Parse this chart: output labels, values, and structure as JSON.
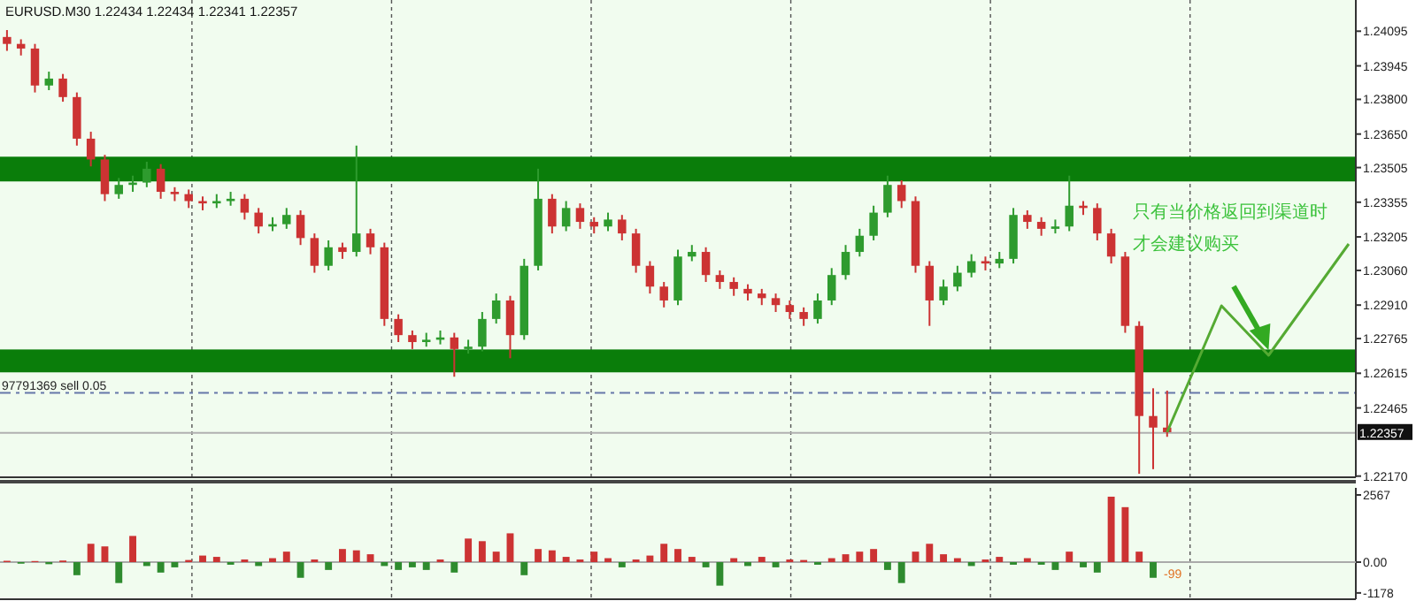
{
  "chart_data": [
    {
      "type": "candlestick",
      "title": "EURUSD.M30 1.22434 1.22434 1.22341 1.22357",
      "categories": [
        null,
        null,
        null,
        null,
        null,
        null,
        null,
        null,
        null,
        null,
        null,
        null,
        null,
        null,
        null,
        null,
        null,
        null,
        null,
        null,
        null,
        null,
        null,
        null,
        null,
        null,
        null,
        null,
        null,
        null,
        null,
        null,
        null,
        null,
        null,
        null,
        null,
        null,
        null,
        null,
        null,
        null,
        null,
        null,
        null,
        null,
        null,
        null,
        null,
        null,
        null,
        null,
        null,
        null,
        null,
        null,
        null,
        null,
        null,
        null,
        null,
        null,
        null,
        null,
        null,
        null,
        null,
        null,
        null,
        null,
        null,
        null,
        null,
        null,
        null,
        null,
        null,
        null,
        null,
        null,
        null,
        null,
        null,
        null,
        null,
        null,
        null,
        null,
        null,
        null,
        null,
        null,
        null,
        null,
        null,
        null,
        null
      ],
      "ohlc": [
        [
          1.2407,
          1.241,
          1.2401,
          1.2404
        ],
        [
          1.2404,
          1.2406,
          1.2399,
          1.2402
        ],
        [
          1.2402,
          1.2404,
          1.2383,
          1.2386
        ],
        [
          1.2386,
          1.2392,
          1.2384,
          1.2389
        ],
        [
          1.2389,
          1.2391,
          1.2379,
          1.2381
        ],
        [
          1.2381,
          1.2383,
          1.236,
          1.2363
        ],
        [
          1.2363,
          1.2366,
          1.2351,
          1.2354
        ],
        [
          1.2354,
          1.2356,
          1.2336,
          1.2339
        ],
        [
          1.2339,
          1.2346,
          1.2337,
          1.2343
        ],
        [
          1.2343,
          1.2347,
          1.234,
          1.2344
        ],
        [
          1.2344,
          1.2353,
          1.2342,
          1.235
        ],
        [
          1.235,
          1.2352,
          1.2337,
          1.234
        ],
        [
          1.234,
          1.2342,
          1.2336,
          1.2339
        ],
        [
          1.2339,
          1.2341,
          1.2333,
          1.2336
        ],
        [
          1.2336,
          1.2338,
          1.2332,
          1.2335
        ],
        [
          1.2335,
          1.2339,
          1.2333,
          1.2336
        ],
        [
          1.2336,
          1.234,
          1.2334,
          1.2337
        ],
        [
          1.2337,
          1.2339,
          1.2328,
          1.2331
        ],
        [
          1.2331,
          1.2333,
          1.2322,
          1.2325
        ],
        [
          1.2325,
          1.2329,
          1.2323,
          1.2326
        ],
        [
          1.2326,
          1.2333,
          1.2324,
          1.233
        ],
        [
          1.233,
          1.2332,
          1.2317,
          1.232
        ],
        [
          1.232,
          1.2322,
          1.2305,
          1.2308
        ],
        [
          1.2308,
          1.2319,
          1.2306,
          1.2316
        ],
        [
          1.2316,
          1.2318,
          1.2311,
          1.2314
        ],
        [
          1.2314,
          1.236,
          1.2312,
          1.2322
        ],
        [
          1.2322,
          1.2324,
          1.2313,
          1.2316
        ],
        [
          1.2316,
          1.2318,
          1.2282,
          1.2285
        ],
        [
          1.2285,
          1.2287,
          1.2275,
          1.2278
        ],
        [
          1.2278,
          1.228,
          1.2272,
          1.2275
        ],
        [
          1.2275,
          1.2279,
          1.2273,
          1.2276
        ],
        [
          1.2276,
          1.228,
          1.2274,
          1.2277
        ],
        [
          1.2277,
          1.2279,
          1.226,
          1.2272
        ],
        [
          1.2272,
          1.2276,
          1.227,
          1.2273
        ],
        [
          1.2273,
          1.2288,
          1.2271,
          1.2285
        ],
        [
          1.2285,
          1.2296,
          1.2283,
          1.2293
        ],
        [
          1.2293,
          1.2295,
          1.2268,
          1.2278
        ],
        [
          1.2278,
          1.2311,
          1.2276,
          1.2308
        ],
        [
          1.2308,
          1.235,
          1.2306,
          1.2337
        ],
        [
          1.2337,
          1.2339,
          1.2322,
          1.2325
        ],
        [
          1.2325,
          1.2336,
          1.2323,
          1.2333
        ],
        [
          1.2333,
          1.2335,
          1.2324,
          1.2327
        ],
        [
          1.2327,
          1.2329,
          1.2322,
          1.2325
        ],
        [
          1.2325,
          1.2331,
          1.2323,
          1.2328
        ],
        [
          1.2328,
          1.233,
          1.2319,
          1.2322
        ],
        [
          1.2322,
          1.2324,
          1.2305,
          1.2308
        ],
        [
          1.2308,
          1.231,
          1.2296,
          1.2299
        ],
        [
          1.2299,
          1.2301,
          1.229,
          1.2293
        ],
        [
          1.2293,
          1.2315,
          1.2291,
          1.2312
        ],
        [
          1.2312,
          1.2317,
          1.231,
          1.2314
        ],
        [
          1.2314,
          1.2316,
          1.2301,
          1.2304
        ],
        [
          1.2304,
          1.2306,
          1.2298,
          1.2301
        ],
        [
          1.2301,
          1.2303,
          1.2295,
          1.2298
        ],
        [
          1.2298,
          1.23,
          1.2293,
          1.2296
        ],
        [
          1.2296,
          1.2298,
          1.2291,
          1.2294
        ],
        [
          1.2294,
          1.2296,
          1.2288,
          1.2291
        ],
        [
          1.2291,
          1.2293,
          1.2285,
          1.2288
        ],
        [
          1.2288,
          1.229,
          1.2282,
          1.2285
        ],
        [
          1.2285,
          1.2296,
          1.2283,
          1.2293
        ],
        [
          1.2293,
          1.2307,
          1.2291,
          1.2304
        ],
        [
          1.2304,
          1.2317,
          1.2302,
          1.2314
        ],
        [
          1.2314,
          1.2324,
          1.2312,
          1.2321
        ],
        [
          1.2321,
          1.2334,
          1.2319,
          1.2331
        ],
        [
          1.2331,
          1.2347,
          1.2329,
          1.2343
        ],
        [
          1.2343,
          1.2345,
          1.2333,
          1.2336
        ],
        [
          1.2336,
          1.2338,
          1.2305,
          1.2308
        ],
        [
          1.2308,
          1.231,
          1.2282,
          1.2293
        ],
        [
          1.2293,
          1.2302,
          1.2291,
          1.2299
        ],
        [
          1.2299,
          1.2308,
          1.2297,
          1.2305
        ],
        [
          1.2305,
          1.2313,
          1.2303,
          1.231
        ],
        [
          1.231,
          1.2312,
          1.2306,
          1.2309
        ],
        [
          1.2309,
          1.2314,
          1.2307,
          1.2311
        ],
        [
          1.2311,
          1.2333,
          1.2309,
          1.233
        ],
        [
          1.233,
          1.2332,
          1.2324,
          1.2327
        ],
        [
          1.2327,
          1.2329,
          1.2321,
          1.2324
        ],
        [
          1.2324,
          1.2328,
          1.2322,
          1.2325
        ],
        [
          1.2325,
          1.2347,
          1.2323,
          1.2334
        ],
        [
          1.2334,
          1.2336,
          1.233,
          1.2333
        ],
        [
          1.2333,
          1.2335,
          1.2319,
          1.2322
        ],
        [
          1.2322,
          1.2324,
          1.2309,
          1.2312
        ],
        [
          1.2312,
          1.2314,
          1.2279,
          1.2282
        ],
        [
          1.2282,
          1.2284,
          1.2218,
          1.2243
        ],
        [
          1.2243,
          1.2255,
          1.222,
          1.2238
        ],
        [
          1.2238,
          1.2254,
          1.2234,
          1.2236
        ],
        null,
        null,
        null,
        null,
        null,
        null,
        null,
        null,
        null,
        null,
        null,
        null,
        null
      ],
      "colors": [
        "#cc3333",
        "#cc3333",
        "#cc3333",
        "#2e9b2e",
        "#cc3333",
        "#cc3333",
        "#cc3333",
        "#cc3333",
        "#2e9b2e",
        "#2e9b2e",
        "#2e9b2e",
        "#cc3333",
        "#cc3333",
        "#cc3333",
        "#cc3333",
        "#2e9b2e",
        "#2e9b2e",
        "#cc3333",
        "#cc3333",
        "#2e9b2e",
        "#2e9b2e",
        "#cc3333",
        "#cc3333",
        "#2e9b2e",
        "#cc3333",
        "#2e9b2e",
        "#cc3333",
        "#cc3333",
        "#cc3333",
        "#cc3333",
        "#2e9b2e",
        "#2e9b2e",
        "#cc3333",
        "#2e9b2e",
        "#2e9b2e",
        "#2e9b2e",
        "#cc3333",
        "#2e9b2e",
        "#2e9b2e",
        "#cc3333",
        "#2e9b2e",
        "#cc3333",
        "#cc3333",
        "#2e9b2e",
        "#cc3333",
        "#cc3333",
        "#cc3333",
        "#cc3333",
        "#2e9b2e",
        "#2e9b2e",
        "#cc3333",
        "#cc3333",
        "#cc3333",
        "#cc3333",
        "#cc3333",
        "#cc3333",
        "#cc3333",
        "#cc3333",
        "#2e9b2e",
        "#2e9b2e",
        "#2e9b2e",
        "#2e9b2e",
        "#2e9b2e",
        "#2e9b2e",
        "#cc3333",
        "#cc3333",
        "#cc3333",
        "#2e9b2e",
        "#2e9b2e",
        "#2e9b2e",
        "#cc3333",
        "#2e9b2e",
        "#2e9b2e",
        "#cc3333",
        "#cc3333",
        "#2e9b2e",
        "#2e9b2e",
        "#cc3333",
        "#cc3333",
        "#cc3333",
        "#cc3333",
        "#cc3333",
        "#cc3333",
        "#cc3333",
        null,
        null,
        null,
        null,
        null,
        null,
        null,
        null,
        null,
        null,
        null,
        null,
        null
      ],
      "ylim": [
        1.22165,
        1.2423
      ],
      "yticks": [
        1.24095,
        1.23945,
        {
          "value": 1.238,
          "label": "1.23800"
        },
        {
          "value": 1.2365,
          "label": "1.23650"
        },
        1.23505,
        1.23355,
        1.23205,
        {
          "value": 1.2306,
          "label": "1.23060"
        },
        {
          "value": 1.2291,
          "label": "1.22910"
        },
        1.22765,
        1.22615,
        1.22465,
        {
          "value": 1.2217,
          "label": "1.22170"
        }
      ],
      "bands": [
        {
          "axis": "y",
          "from": 1.23445,
          "to": 1.23552,
          "color": "#0a7d0a"
        },
        {
          "axis": "y",
          "from": 1.22619,
          "to": 1.22718,
          "color": "#0a7d0a"
        }
      ],
      "ref_lines": [
        {
          "axis": "y",
          "value": 1.2253,
          "label": "97791369 sell  0.05",
          "color": "#6677aa",
          "line_style": "dashed"
        },
        {
          "axis": "y",
          "value": 1.22357,
          "label": "1.22357",
          "color": "#b0b0b0",
          "line_style": "solid"
        }
      ],
      "annotations": [
        "只有当价格返回到渠道时",
        "才会建议购买"
      ],
      "grid": false
    },
    {
      "type": "bar",
      "categories": [
        null,
        null,
        null,
        null,
        null,
        null,
        null,
        null,
        null,
        null,
        null,
        null,
        null,
        null,
        null,
        null,
        null,
        null,
        null,
        null,
        null,
        null,
        null,
        null,
        null,
        null,
        null,
        null,
        null,
        null,
        null,
        null,
        null,
        null,
        null,
        null,
        null,
        null,
        null,
        null,
        null,
        null,
        null,
        null,
        null,
        null,
        null,
        null,
        null,
        null,
        null,
        null,
        null,
        null,
        null,
        null,
        null,
        null,
        null,
        null,
        null,
        null,
        null,
        null,
        null,
        null,
        null,
        null,
        null,
        null,
        null,
        null,
        null,
        null,
        null,
        null,
        null,
        null,
        null,
        null,
        null,
        null,
        null,
        null,
        null,
        null,
        null,
        null,
        null,
        null,
        null,
        null,
        null,
        null,
        null,
        null,
        null
      ],
      "values": [
        50,
        -60,
        40,
        -80,
        60,
        -500,
        700,
        600,
        -800,
        1000,
        -150,
        -400,
        -200,
        80,
        250,
        200,
        -100,
        100,
        -150,
        150,
        400,
        -600,
        100,
        -300,
        500,
        450,
        300,
        -150,
        -300,
        -200,
        -300,
        100,
        -400,
        900,
        800,
        400,
        1100,
        -500,
        500,
        450,
        200,
        100,
        400,
        150,
        -200,
        100,
        250,
        700,
        500,
        200,
        -200,
        -900,
        150,
        -150,
        200,
        -200,
        100,
        80,
        -100,
        150,
        300,
        400,
        500,
        -300,
        -800,
        400,
        700,
        300,
        150,
        -150,
        100,
        200,
        -100,
        150,
        -100,
        -300,
        400,
        -200,
        -400,
        2500,
        2100,
        400,
        -600,
        null,
        null,
        null,
        null,
        null,
        null,
        null,
        null,
        null,
        null,
        null,
        null,
        null,
        null
      ],
      "colors": [
        "#cc3333",
        "#2e8b2e",
        "#cc3333",
        "#2e8b2e",
        "#cc3333",
        "#2e8b2e",
        "#cc3333",
        "#cc3333",
        "#2e8b2e",
        "#cc3333",
        "#2e8b2e",
        "#2e8b2e",
        "#2e8b2e",
        "#cc3333",
        "#cc3333",
        "#cc3333",
        "#2e8b2e",
        "#cc3333",
        "#2e8b2e",
        "#cc3333",
        "#cc3333",
        "#2e8b2e",
        "#cc3333",
        "#2e8b2e",
        "#cc3333",
        "#cc3333",
        "#cc3333",
        "#2e8b2e",
        "#2e8b2e",
        "#2e8b2e",
        "#2e8b2e",
        "#cc3333",
        "#2e8b2e",
        "#cc3333",
        "#cc3333",
        "#cc3333",
        "#cc3333",
        "#2e8b2e",
        "#cc3333",
        "#cc3333",
        "#cc3333",
        "#cc3333",
        "#cc3333",
        "#cc3333",
        "#2e8b2e",
        "#cc3333",
        "#cc3333",
        "#cc3333",
        "#cc3333",
        "#cc3333",
        "#2e8b2e",
        "#2e8b2e",
        "#cc3333",
        "#2e8b2e",
        "#cc3333",
        "#2e8b2e",
        "#cc3333",
        "#cc3333",
        "#2e8b2e",
        "#cc3333",
        "#cc3333",
        "#cc3333",
        "#cc3333",
        "#2e8b2e",
        "#2e8b2e",
        "#cc3333",
        "#cc3333",
        "#cc3333",
        "#cc3333",
        "#2e8b2e",
        "#cc3333",
        "#cc3333",
        "#2e8b2e",
        "#cc3333",
        "#2e8b2e",
        "#2e8b2e",
        "#cc3333",
        "#2e8b2e",
        "#2e8b2e",
        "#cc3333",
        "#cc3333",
        "#cc3333",
        "#2e8b2e",
        null,
        null,
        null,
        null,
        null,
        null,
        null,
        null,
        null,
        null,
        null,
        null,
        null,
        null
      ],
      "ylim": [
        -1419,
        2837
      ],
      "yticks": [
        2567,
        {
          "value": 0,
          "label": "0.00"
        },
        -1178
      ],
      "annotations": [
        "-99"
      ],
      "grid": false
    }
  ]
}
